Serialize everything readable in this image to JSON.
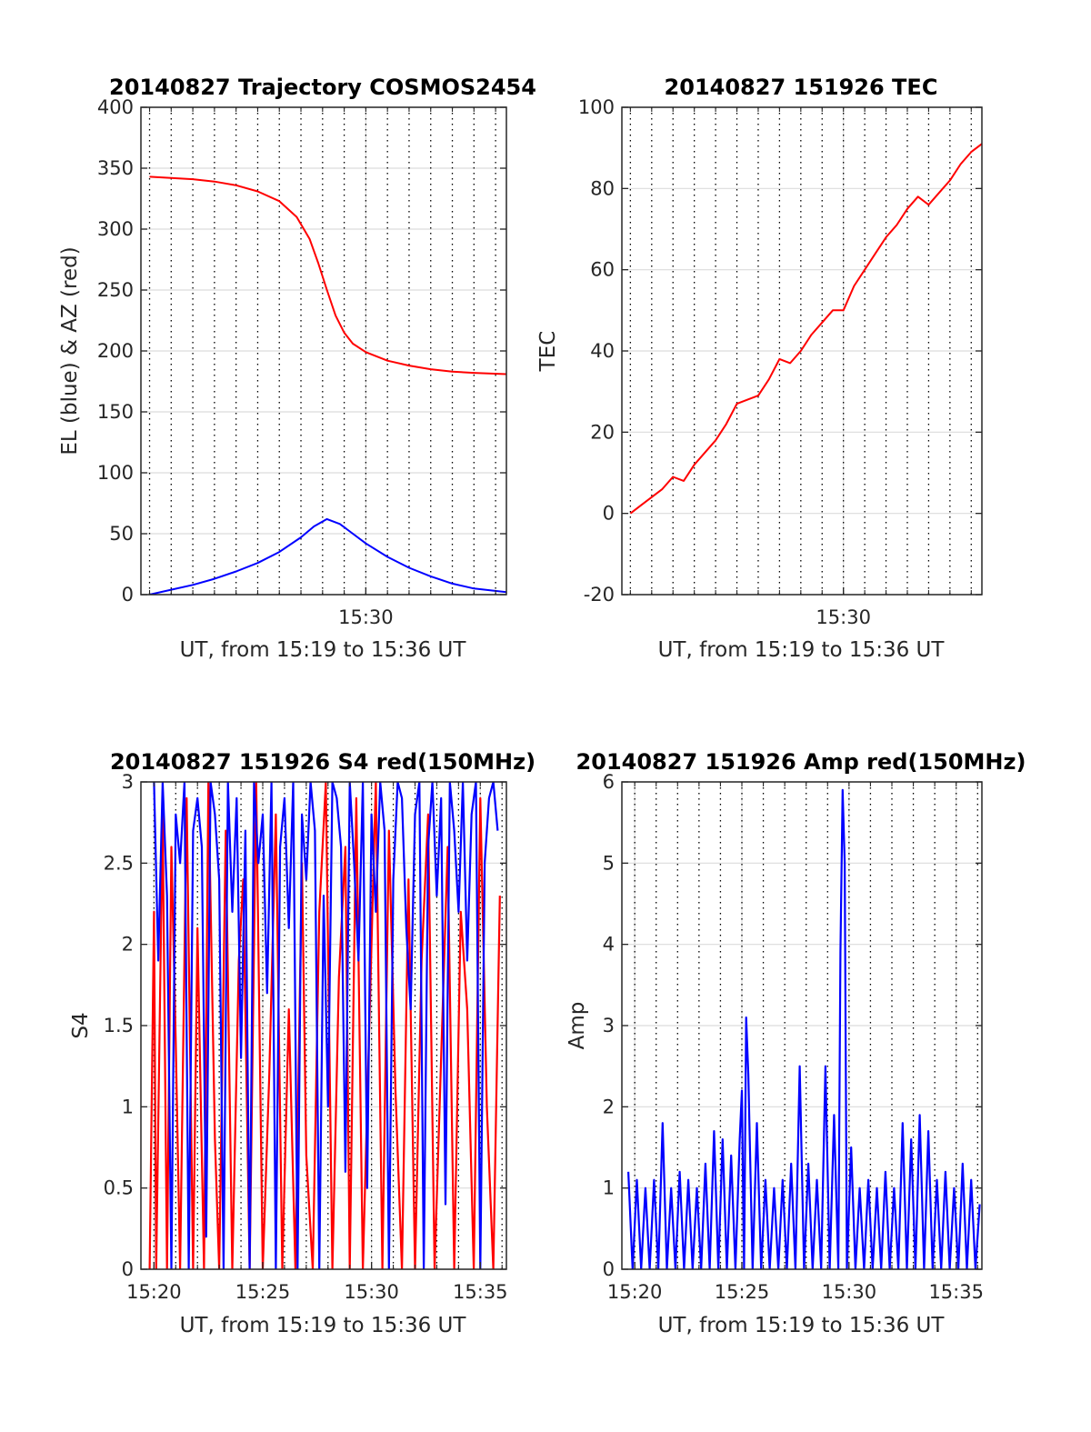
{
  "figure": {
    "background": "#ffffff"
  },
  "chart_data": [
    {
      "id": "traj",
      "type": "line",
      "title": "20140827 Trajectory COSMOS2454",
      "xlabel": "UT, from 15:19 to 15:36 UT",
      "ylabel": "EL (blue) & AZ (red)",
      "xlim_minutes": [
        19.6,
        36.5
      ],
      "xtick_values": [
        30
      ],
      "xtick_labels": [
        "15:30"
      ],
      "ylim": [
        0,
        400
      ],
      "yticks": [
        0,
        50,
        100,
        150,
        200,
        250,
        300,
        350,
        400
      ],
      "grid": true,
      "series": [
        {
          "color": "#ff0000",
          "x": [
            20.0,
            21.0,
            22.0,
            23.0,
            24.0,
            25.0,
            26.0,
            26.8,
            27.4,
            27.8,
            28.2,
            28.6,
            29.0,
            29.4,
            30.0,
            31.0,
            32.0,
            33.0,
            34.0,
            35.0,
            36.5
          ],
          "values": [
            343,
            342,
            341,
            339,
            336,
            331,
            323,
            310,
            292,
            272,
            250,
            229,
            215,
            206,
            199,
            192,
            188,
            185,
            183,
            182,
            181
          ]
        },
        {
          "color": "#0000ff",
          "x": [
            20.0,
            21.0,
            22.0,
            23.0,
            24.0,
            25.0,
            26.0,
            27.0,
            27.6,
            28.2,
            28.8,
            29.4,
            30.0,
            31.0,
            32.0,
            33.0,
            34.0,
            35.0,
            36.5
          ],
          "values": [
            0,
            4,
            8,
            13,
            19,
            26,
            35,
            47,
            56,
            62,
            58,
            50,
            42,
            31,
            22,
            15,
            9,
            5,
            2
          ]
        }
      ]
    },
    {
      "id": "tec",
      "type": "line",
      "title": "20140827 151926 TEC",
      "xlabel": "UT, from 15:19 to 15:36 UT",
      "ylabel": "TEC",
      "xlim_minutes": [
        19.6,
        36.5
      ],
      "xtick_values": [
        30
      ],
      "xtick_labels": [
        "15:30"
      ],
      "ylim": [
        -20,
        100
      ],
      "yticks": [
        -20,
        0,
        20,
        40,
        60,
        80,
        100
      ],
      "grid": true,
      "series": [
        {
          "color": "#ff0000",
          "x": [
            20.0,
            20.5,
            21.0,
            21.5,
            22.0,
            22.5,
            23.0,
            23.5,
            24.0,
            24.5,
            25.0,
            25.5,
            26.0,
            26.5,
            27.0,
            27.5,
            28.0,
            28.5,
            29.0,
            29.5,
            30.0,
            30.5,
            31.0,
            31.5,
            32.0,
            32.5,
            33.0,
            33.5,
            34.0,
            34.5,
            35.0,
            35.5,
            36.0,
            36.5
          ],
          "values": [
            0,
            2,
            4,
            6,
            9,
            8,
            12,
            15,
            18,
            22,
            27,
            28,
            29,
            33,
            38,
            37,
            40,
            44,
            47,
            50,
            50,
            56,
            60,
            64,
            68,
            71,
            75,
            78,
            76,
            79,
            82,
            86,
            89,
            91
          ]
        }
      ]
    },
    {
      "id": "s4",
      "type": "line",
      "title": "20140827 151926 S4 red(150MHz)",
      "xlabel": "UT, from 15:19 to 15:36 UT",
      "ylabel": "S4",
      "xlim_minutes": [
        19.4,
        36.2
      ],
      "xtick_values": [
        20,
        25,
        30,
        35
      ],
      "xtick_labels": [
        "15:20",
        "15:25",
        "15:30",
        "15:35"
      ],
      "ylim": [
        0,
        3
      ],
      "yticks": [
        0,
        0.5,
        1,
        1.5,
        2,
        2.5,
        3
      ],
      "ytick_labels": [
        "0",
        "0.5",
        "1",
        "1.5",
        "2",
        "2.5",
        "3"
      ],
      "grid": true,
      "series": [
        {
          "color": "#ff0000",
          "x": [
            19.8,
            20.0,
            20.1,
            20.4,
            20.6,
            20.8,
            21.0,
            21.2,
            21.5,
            21.8,
            22.0,
            22.3,
            22.5,
            22.8,
            23.0,
            23.3,
            23.6,
            23.9,
            24.1,
            24.4,
            24.7,
            25.0,
            25.3,
            25.6,
            25.9,
            26.2,
            26.5,
            26.8,
            27.0,
            27.3,
            27.6,
            27.9,
            28.2,
            28.5,
            28.8,
            29.0,
            29.3,
            29.6,
            29.9,
            30.2,
            30.5,
            30.8,
            31.1,
            31.4,
            31.7,
            32.0,
            32.3,
            32.6,
            32.9,
            33.2,
            33.5,
            33.8,
            34.1,
            34.4,
            34.7,
            35.0,
            35.3,
            35.6,
            35.9
          ],
          "values": [
            0,
            2.2,
            0,
            2.8,
            0,
            2.6,
            1.4,
            0,
            2.9,
            0,
            2.1,
            0,
            3.0,
            0.8,
            0,
            2.7,
            0,
            1.9,
            2.4,
            0,
            3.0,
            0,
            1.2,
            2.8,
            0,
            1.6,
            0,
            2.5,
            0.7,
            0,
            2.2,
            3.0,
            0,
            1.8,
            2.6,
            0,
            2.9,
            0,
            1.5,
            3.0,
            0,
            2.7,
            1.1,
            0,
            2.4,
            0,
            1.9,
            2.8,
            0,
            1.3,
            2.6,
            0,
            2.2,
            1.6,
            0,
            2.9,
            1.0,
            0,
            2.3
          ]
        },
        {
          "color": "#0000ff",
          "x": [
            20.0,
            20.2,
            20.4,
            20.6,
            20.8,
            21.0,
            21.2,
            21.4,
            21.6,
            21.8,
            22.0,
            22.2,
            22.4,
            22.6,
            22.8,
            23.0,
            23.2,
            23.4,
            23.6,
            23.8,
            24.0,
            24.2,
            24.4,
            24.6,
            24.8,
            25.0,
            25.2,
            25.4,
            25.6,
            25.8,
            26.0,
            26.2,
            26.4,
            26.6,
            26.8,
            27.0,
            27.2,
            27.4,
            27.6,
            27.8,
            28.0,
            28.2,
            28.4,
            28.6,
            28.8,
            29.0,
            29.2,
            29.4,
            29.6,
            29.8,
            30.0,
            30.2,
            30.4,
            30.6,
            30.8,
            31.0,
            31.2,
            31.4,
            31.6,
            31.8,
            32.0,
            32.2,
            32.4,
            32.6,
            32.8,
            33.0,
            33.2,
            33.4,
            33.6,
            33.8,
            34.0,
            34.2,
            34.4,
            34.6,
            34.8,
            35.0,
            35.2,
            35.4,
            35.6,
            35.8
          ],
          "values": [
            3.0,
            1.9,
            3.0,
            2.3,
            0,
            2.8,
            2.5,
            3.0,
            0,
            2.7,
            2.9,
            2.6,
            0.2,
            3.0,
            2.8,
            2.4,
            0,
            3.0,
            2.2,
            2.9,
            1.3,
            2.7,
            0,
            3.0,
            2.5,
            2.8,
            1.7,
            3.0,
            0,
            2.6,
            2.9,
            2.1,
            3.0,
            0,
            2.8,
            2.4,
            3.0,
            2.7,
            0,
            2.3,
            1.0,
            3.0,
            2.9,
            2.6,
            0.6,
            3.0,
            2.5,
            1.9,
            3.0,
            0.5,
            2.8,
            2.2,
            3.0,
            2.7,
            0,
            2.4,
            3.0,
            2.9,
            2.1,
            1.6,
            2.8,
            3.0,
            0,
            2.6,
            3.0,
            2.3,
            2.9,
            0.4,
            3.0,
            2.7,
            2.2,
            3.0,
            1.9,
            2.8,
            3.0,
            0,
            2.5,
            2.9,
            3.0,
            2.7
          ]
        }
      ]
    },
    {
      "id": "amp",
      "type": "line",
      "title": "20140827 151926 Amp red(150MHz)",
      "xlabel": "UT, from 15:19 to 15:36 UT",
      "ylabel": "Amp",
      "xlim_minutes": [
        19.4,
        36.2
      ],
      "xtick_values": [
        20,
        25,
        30,
        35
      ],
      "xtick_labels": [
        "15:20",
        "15:25",
        "15:30",
        "15:35"
      ],
      "ylim": [
        0,
        6
      ],
      "yticks": [
        0,
        1,
        2,
        3,
        4,
        5,
        6
      ],
      "grid": true,
      "series": [
        {
          "color": "#0000ff",
          "x": [
            19.7,
            19.9,
            20.1,
            20.3,
            20.5,
            20.7,
            20.9,
            21.1,
            21.3,
            21.5,
            21.7,
            21.9,
            22.1,
            22.3,
            22.5,
            22.7,
            22.9,
            23.1,
            23.3,
            23.5,
            23.7,
            23.9,
            24.1,
            24.3,
            24.5,
            24.7,
            24.9,
            25.0,
            25.1,
            25.2,
            25.3,
            25.5,
            25.7,
            25.9,
            26.1,
            26.3,
            26.5,
            26.7,
            26.9,
            27.1,
            27.3,
            27.5,
            27.7,
            27.9,
            28.1,
            28.3,
            28.5,
            28.7,
            28.9,
            29.1,
            29.3,
            29.5,
            29.6,
            29.7,
            29.8,
            29.9,
            30.1,
            30.3,
            30.5,
            30.7,
            30.9,
            31.1,
            31.3,
            31.5,
            31.7,
            31.9,
            32.1,
            32.3,
            32.5,
            32.7,
            32.9,
            33.1,
            33.3,
            33.5,
            33.7,
            33.9,
            34.1,
            34.3,
            34.5,
            34.7,
            34.9,
            35.1,
            35.3,
            35.5,
            35.7,
            35.9,
            36.1
          ],
          "values": [
            1.2,
            0,
            1.1,
            0,
            1.0,
            0,
            1.1,
            0,
            1.8,
            0,
            1.0,
            0,
            1.2,
            0,
            1.1,
            0,
            1.0,
            0,
            1.3,
            0,
            1.7,
            0,
            1.6,
            0,
            1.4,
            0,
            1.6,
            2.2,
            0,
            3.1,
            2.4,
            0,
            1.8,
            0,
            1.1,
            0,
            1.0,
            0,
            1.1,
            0,
            1.3,
            0,
            2.5,
            0,
            1.3,
            0,
            1.1,
            0,
            2.5,
            0,
            1.9,
            0,
            3.9,
            5.9,
            5.0,
            0,
            1.5,
            0,
            1.0,
            0,
            1.1,
            0,
            1.0,
            0,
            1.2,
            0,
            1.0,
            0,
            1.8,
            0,
            1.6,
            0,
            1.9,
            0,
            1.7,
            0,
            1.1,
            0,
            1.2,
            0,
            1.0,
            0,
            1.3,
            0,
            1.1,
            0,
            0.8
          ]
        },
        {
          "color": "#ff0000",
          "x": [
            23.0,
            25.6,
            27.2,
            31.7,
            34.5
          ],
          "values": [
            -0.05,
            -0.03,
            -0.04,
            -0.03,
            -0.04
          ]
        }
      ]
    }
  ]
}
